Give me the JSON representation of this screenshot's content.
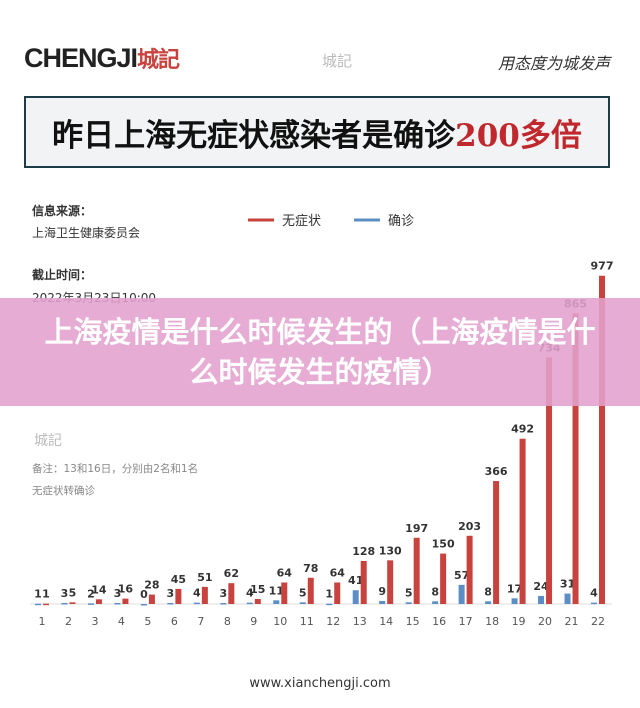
{
  "header": {
    "logo": "CHENGJI",
    "logo_cn": "城記",
    "watermark": "城記",
    "slogan": "用态度为城发声"
  },
  "headline": {
    "text": "昨日上海无症状感染者是确诊",
    "highlight": "200多倍"
  },
  "info": {
    "source_label": "信息来源：",
    "source": "上海卫生健康委员会",
    "date_label": "截止时间：",
    "date": "2022年3月23日10:00",
    "note": "备注：13和16日，分别由2名和1名无症状转确诊"
  },
  "banner": "上海疫情是什么时候发生的（上海疫情是什么时候发生的疫情）",
  "footer": "www.xianchengji.com",
  "chart_data": {
    "type": "bar",
    "categories": [
      "1",
      "2",
      "3",
      "4",
      "5",
      "6",
      "7",
      "8",
      "9",
      "10",
      "11",
      "12",
      "13",
      "14",
      "15",
      "16",
      "17",
      "18",
      "19",
      "20",
      "21",
      "22"
    ],
    "series": [
      {
        "name": "确诊",
        "color": "#5b8ec4",
        "values": [
          1,
          3,
          2,
          3,
          0,
          3,
          4,
          3,
          4,
          11,
          5,
          1,
          41,
          9,
          5,
          8,
          57,
          8,
          17,
          24,
          31,
          4
        ]
      },
      {
        "name": "无症状",
        "color": "#c8423e",
        "values": [
          1,
          5,
          14,
          16,
          28,
          45,
          51,
          62,
          15,
          64,
          78,
          64,
          128,
          130,
          197,
          150,
          203,
          366,
          492,
          734,
          865,
          977
        ]
      }
    ],
    "ylim": [
      0,
      1000
    ]
  }
}
